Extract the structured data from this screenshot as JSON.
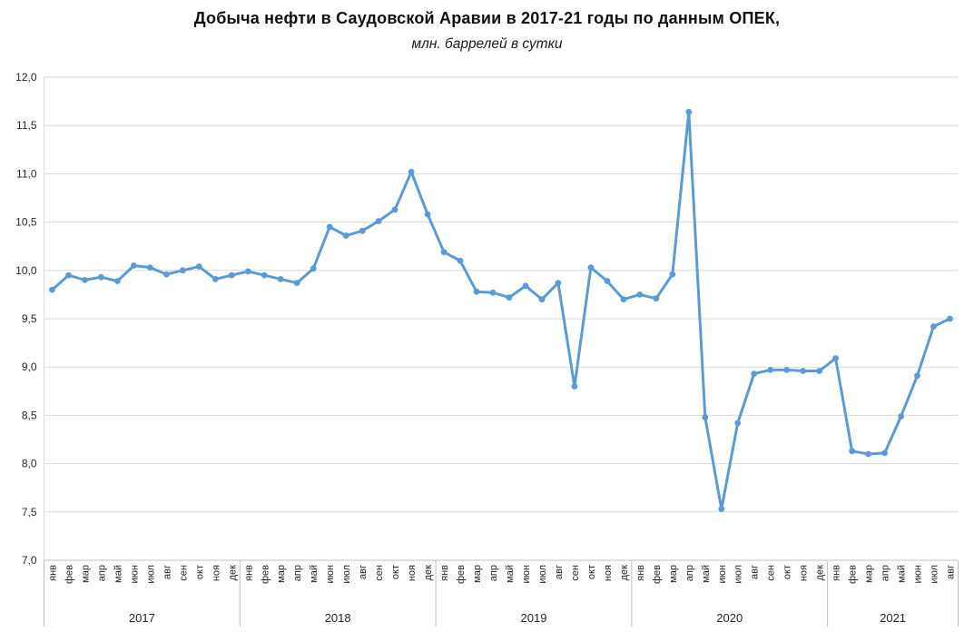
{
  "chart_data": {
    "type": "line",
    "title": "Добыча нефти в Саудовской Аравии в 2017-21 годы по данным ОПЕК,",
    "subtitle": "млн. баррелей в сутки",
    "xlabel": "",
    "ylabel": "",
    "ylim": [
      7.0,
      12.0
    ],
    "ytick_step": 0.5,
    "ytick_labels": [
      "7,0",
      "7,5",
      "8,0",
      "8,5",
      "9,0",
      "9,5",
      "10,0",
      "10,5",
      "11,0",
      "11,5",
      "12,0"
    ],
    "decimal_separator": ",",
    "grid": "horizontal",
    "legend": "none",
    "line_color": "#5B9BD5",
    "grid_color": "#D9D9D9",
    "axis_color": "#BFBFBF",
    "label_color": "#262626",
    "marker": "circle",
    "month_tick_labels": [
      "янв",
      "фев",
      "мар",
      "апр",
      "май",
      "июн",
      "июл",
      "авг",
      "сен",
      "окт",
      "ноя",
      "дек"
    ],
    "series_name": "Добыча нефти, млн. баррелей в сутки",
    "years": [
      {
        "label": "2017",
        "months": [
          "янв",
          "фев",
          "мар",
          "апр",
          "май",
          "июн",
          "июл",
          "авг",
          "сен",
          "окт",
          "ноя",
          "дек"
        ],
        "values": [
          9.8,
          9.95,
          9.9,
          9.93,
          9.89,
          10.05,
          10.03,
          9.96,
          10.0,
          10.04,
          9.91,
          9.95
        ]
      },
      {
        "label": "2018",
        "months": [
          "янв",
          "фев",
          "мар",
          "апр",
          "май",
          "июн",
          "июл",
          "авг",
          "сен",
          "окт",
          "ноя",
          "дек"
        ],
        "values": [
          9.99,
          9.95,
          9.91,
          9.87,
          10.02,
          10.45,
          10.36,
          10.41,
          10.51,
          10.63,
          11.02,
          10.58
        ]
      },
      {
        "label": "2019",
        "months": [
          "янв",
          "фев",
          "мар",
          "апр",
          "май",
          "июн",
          "июл",
          "авг",
          "сен",
          "окт",
          "ноя",
          "дек"
        ],
        "values": [
          10.19,
          10.1,
          9.78,
          9.77,
          9.72,
          9.84,
          9.7,
          9.87,
          8.8,
          10.03,
          9.89,
          9.7
        ]
      },
      {
        "label": "2020",
        "months": [
          "янв",
          "фев",
          "мар",
          "апр",
          "май",
          "июн",
          "июл",
          "авг",
          "сен",
          "окт",
          "ноя",
          "дек"
        ],
        "values": [
          9.75,
          9.71,
          9.96,
          11.64,
          8.48,
          7.53,
          8.42,
          8.93,
          8.97,
          8.97,
          8.96,
          8.96
        ]
      },
      {
        "label": "2021",
        "months": [
          "янв",
          "фев",
          "мар",
          "апр",
          "май",
          "июн",
          "июл",
          "авг"
        ],
        "values": [
          9.09,
          8.13,
          8.1,
          8.11,
          8.49,
          8.91,
          9.42,
          9.5
        ]
      }
    ]
  }
}
